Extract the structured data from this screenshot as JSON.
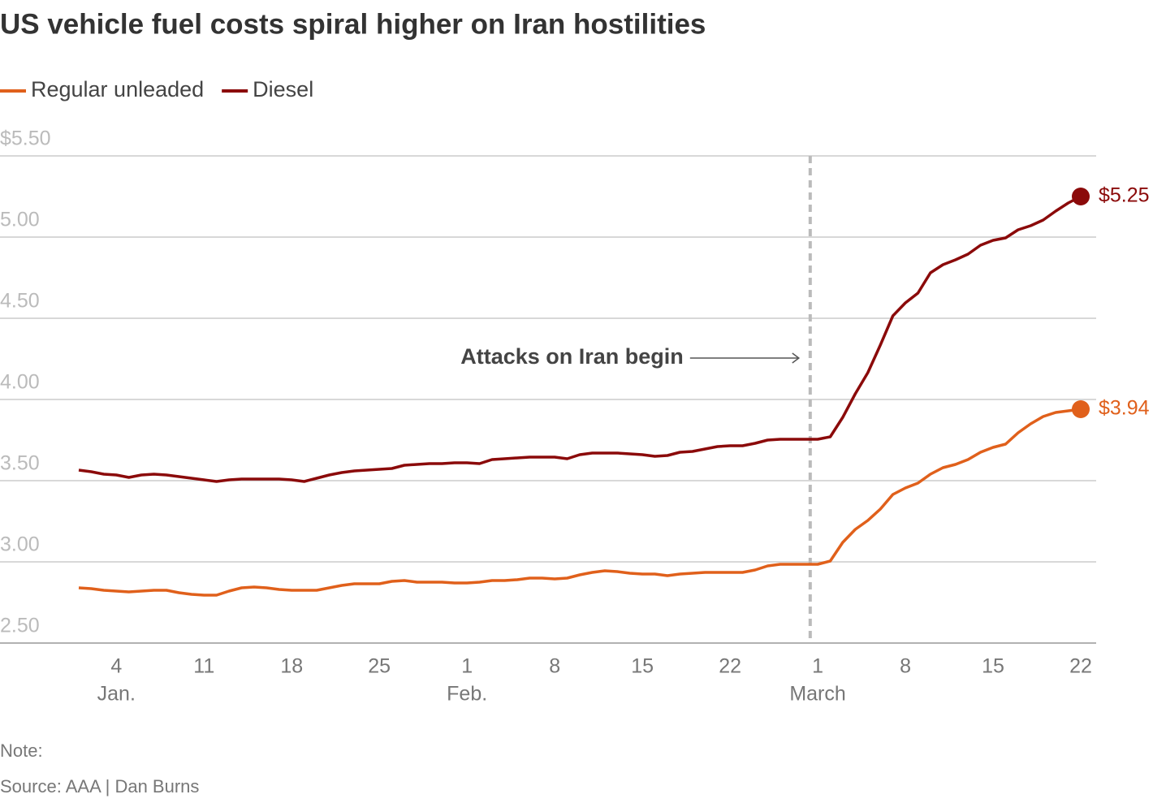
{
  "chart_data": {
    "type": "line",
    "title": "US vehicle fuel costs spiral higher on Iran hostilities",
    "note": "Note:",
    "source": "Source: AAA | Dan Burns",
    "x": [
      1,
      2,
      3,
      4,
      5,
      6,
      7,
      8,
      9,
      10,
      11,
      12,
      13,
      14,
      15,
      16,
      17,
      18,
      19,
      20,
      21,
      22,
      23,
      24,
      25,
      26,
      27,
      28,
      29,
      30,
      31,
      32,
      33,
      34,
      35,
      36,
      37,
      38,
      39,
      40,
      41,
      42,
      43,
      44,
      45,
      46,
      47,
      48,
      49,
      50,
      51,
      52,
      53,
      54,
      55,
      56,
      57,
      58,
      59,
      60,
      61,
      62,
      63,
      64,
      65,
      66,
      67,
      68,
      69,
      70,
      71,
      72,
      73,
      74,
      75,
      76,
      77,
      78,
      79,
      80,
      81
    ],
    "series": [
      {
        "name": "Regular unleaded",
        "color": "#e0601b",
        "values": [
          2.84,
          2.835,
          2.825,
          2.82,
          2.815,
          2.82,
          2.825,
          2.825,
          2.81,
          2.8,
          2.795,
          2.795,
          2.82,
          2.84,
          2.845,
          2.84,
          2.83,
          2.825,
          2.825,
          2.825,
          2.84,
          2.855,
          2.865,
          2.865,
          2.865,
          2.88,
          2.885,
          2.875,
          2.875,
          2.875,
          2.87,
          2.87,
          2.875,
          2.885,
          2.885,
          2.89,
          2.9,
          2.9,
          2.895,
          2.9,
          2.92,
          2.935,
          2.945,
          2.94,
          2.93,
          2.925,
          2.925,
          2.915,
          2.925,
          2.93,
          2.935,
          2.935,
          2.935,
          2.935,
          2.95,
          2.975,
          2.985,
          2.985,
          2.985,
          2.985,
          3.005,
          3.12,
          3.2,
          3.255,
          3.325,
          3.415,
          3.455,
          3.485,
          3.54,
          3.58,
          3.6,
          3.63,
          3.675,
          3.705,
          3.725,
          3.795,
          3.85,
          3.895,
          3.92,
          3.93,
          3.94
        ],
        "value_labels": [
          null,
          null,
          null,
          null,
          null,
          null,
          null,
          null,
          null,
          null,
          null,
          null,
          null,
          null,
          null,
          null,
          null,
          null,
          null,
          null,
          null,
          null,
          null,
          null,
          null,
          null,
          null,
          null,
          null,
          null,
          null,
          null,
          null,
          null,
          null,
          null,
          null,
          null,
          null,
          null,
          null,
          null,
          null,
          null,
          null,
          null,
          null,
          null,
          null,
          null,
          null,
          null,
          null,
          null,
          null,
          null,
          null,
          null,
          null,
          null,
          null,
          null,
          null,
          null,
          null,
          null,
          null,
          null,
          null,
          null,
          null,
          null,
          null,
          null,
          null,
          null,
          null,
          null,
          null,
          null,
          "$3.94"
        ]
      },
      {
        "name": "Diesel",
        "color": "#8b0a0a",
        "values": [
          3.565,
          3.555,
          3.54,
          3.535,
          3.52,
          3.535,
          3.54,
          3.535,
          3.525,
          3.515,
          3.505,
          3.495,
          3.505,
          3.51,
          3.51,
          3.51,
          3.51,
          3.505,
          3.495,
          3.515,
          3.535,
          3.55,
          3.56,
          3.565,
          3.57,
          3.575,
          3.595,
          3.6,
          3.605,
          3.605,
          3.61,
          3.61,
          3.605,
          3.63,
          3.635,
          3.64,
          3.645,
          3.645,
          3.645,
          3.635,
          3.66,
          3.67,
          3.67,
          3.67,
          3.665,
          3.66,
          3.65,
          3.655,
          3.675,
          3.68,
          3.695,
          3.71,
          3.715,
          3.715,
          3.73,
          3.75,
          3.755,
          3.755,
          3.755,
          3.755,
          3.77,
          3.89,
          4.035,
          4.165,
          4.335,
          4.515,
          4.595,
          4.655,
          4.78,
          4.83,
          4.86,
          4.895,
          4.95,
          4.98,
          4.995,
          5.045,
          5.07,
          5.105,
          5.16,
          5.21,
          5.25
        ],
        "value_labels": [
          null,
          null,
          null,
          null,
          null,
          null,
          null,
          null,
          null,
          null,
          null,
          null,
          null,
          null,
          null,
          null,
          null,
          null,
          null,
          null,
          null,
          null,
          null,
          null,
          null,
          null,
          null,
          null,
          null,
          null,
          null,
          null,
          null,
          null,
          null,
          null,
          null,
          null,
          null,
          null,
          null,
          null,
          null,
          null,
          null,
          null,
          null,
          null,
          null,
          null,
          null,
          null,
          null,
          null,
          null,
          null,
          null,
          null,
          null,
          null,
          null,
          null,
          null,
          null,
          null,
          null,
          null,
          null,
          null,
          null,
          null,
          null,
          null,
          null,
          null,
          null,
          null,
          null,
          null,
          null,
          "$5.25"
        ]
      }
    ],
    "xlim": [
      1,
      81
    ],
    "xticks": [
      4,
      11,
      18,
      25,
      {
        "value": 32,
        "label": "1"
      },
      {
        "value": 39,
        "label": "8"
      },
      {
        "value": 46,
        "label": "15"
      },
      {
        "value": 53,
        "label": "22"
      },
      {
        "value": 60,
        "label": "1"
      },
      {
        "value": 67,
        "label": "8"
      },
      {
        "value": 74,
        "label": "15"
      },
      {
        "value": 81,
        "label": "22"
      }
    ],
    "month_labels": [
      {
        "value": 4,
        "label": "Jan."
      },
      {
        "value": 32,
        "label": "Feb."
      },
      {
        "value": 60,
        "label": "March"
      }
    ],
    "ylim": [
      2.5,
      5.5
    ],
    "yticks": [
      {
        "value": 2.5,
        "label": "2.50"
      },
      {
        "value": 3,
        "label": "3.00"
      },
      {
        "value": 3.5,
        "label": "3.50"
      },
      {
        "value": 4,
        "label": "4.00"
      },
      {
        "value": 4.5,
        "label": "4.50"
      },
      {
        "value": 5,
        "label": "5.00"
      },
      {
        "value": 5.5,
        "label": "$5.50"
      }
    ],
    "grid": true,
    "legend": "top-left",
    "annotation": {
      "text": "Attacks on Iran begin",
      "x": 59.4
    }
  }
}
